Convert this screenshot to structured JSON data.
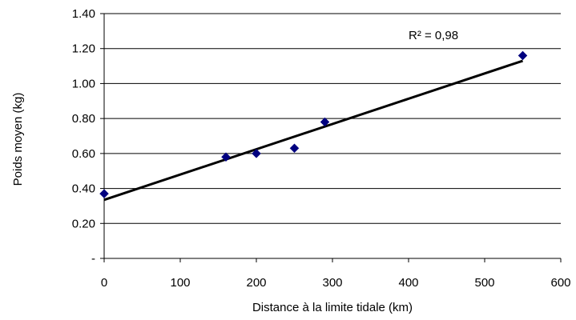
{
  "chart_data": {
    "type": "scatter",
    "xlabel": "Distance à la limite tidale (km)",
    "ylabel": "Poids moyen (kg)",
    "xlim": [
      0,
      600
    ],
    "ylim": [
      0,
      1.4
    ],
    "x_ticks": [
      0,
      100,
      200,
      300,
      400,
      500,
      600
    ],
    "x_tick_labels": [
      "0",
      "100",
      "200",
      "300",
      "400",
      "500",
      "600"
    ],
    "y_ticks": [
      0,
      0.2,
      0.4,
      0.6,
      0.8,
      1.0,
      1.2,
      1.4
    ],
    "y_tick_labels": [
      "-",
      "0.20",
      "0.40",
      "0.60",
      "0.80",
      "1.00",
      "1.20",
      "1.40"
    ],
    "grid": "horizontal",
    "series": [
      {
        "marker": "diamond",
        "color": "#000080",
        "points": [
          {
            "x": 0,
            "y": 0.37
          },
          {
            "x": 160,
            "y": 0.58
          },
          {
            "x": 200,
            "y": 0.6
          },
          {
            "x": 250,
            "y": 0.63
          },
          {
            "x": 290,
            "y": 0.78
          },
          {
            "x": 550,
            "y": 1.16
          }
        ]
      }
    ],
    "trendline": {
      "type": "linear",
      "x_start": 0,
      "y_start": 0.335,
      "x_end": 550,
      "y_end": 1.13,
      "color": "#000000"
    },
    "annotation": "R² = 0,98"
  }
}
